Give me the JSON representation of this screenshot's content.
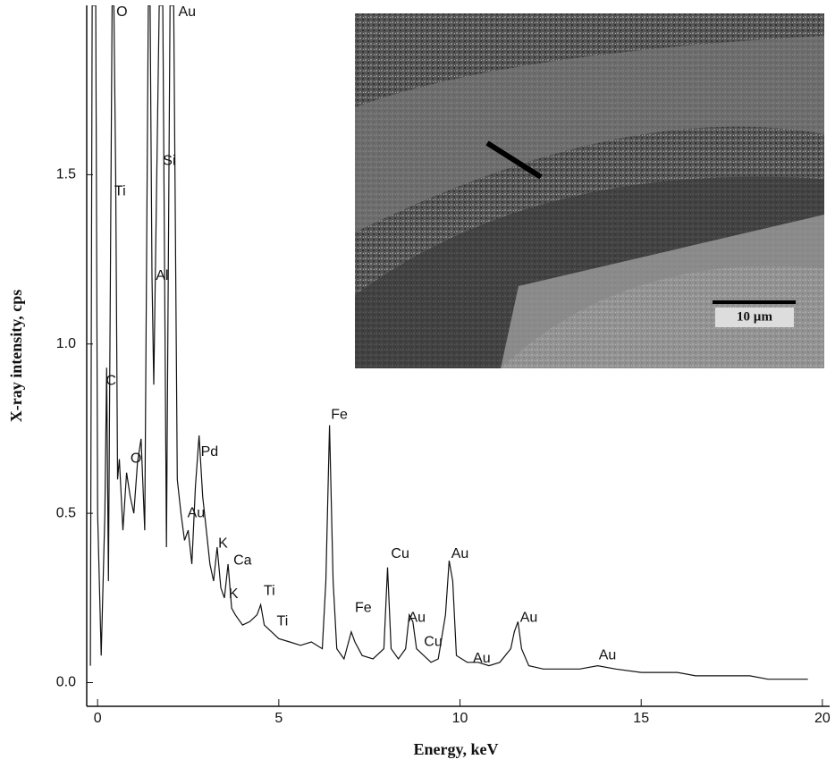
{
  "chart_data": {
    "type": "line",
    "ylabel": "X-ray intensity, cps",
    "xlabel": "Energy, keV",
    "xlim": [
      -0.3,
      20.2
    ],
    "ylim": [
      -0.07,
      2.0
    ],
    "xticks": [
      0,
      5,
      10,
      15,
      20
    ],
    "yticks": [
      {
        "value": 0,
        "label": "0.0"
      },
      0.5,
      {
        "value": 1,
        "label": "1.0"
      },
      1.5
    ],
    "x": [
      -0.2,
      -0.15,
      -0.05,
      0.0,
      0.1,
      0.2,
      0.25,
      0.3,
      0.4,
      0.45,
      0.5,
      0.55,
      0.6,
      0.7,
      0.8,
      0.9,
      1.0,
      1.1,
      1.2,
      1.3,
      1.4,
      1.45,
      1.5,
      1.55,
      1.6,
      1.7,
      1.8,
      1.9,
      2.0,
      2.1,
      2.2,
      2.3,
      2.4,
      2.5,
      2.6,
      2.7,
      2.8,
      2.9,
      3.0,
      3.1,
      3.2,
      3.3,
      3.4,
      3.5,
      3.6,
      3.7,
      3.8,
      4.0,
      4.2,
      4.4,
      4.5,
      4.6,
      4.8,
      5.0,
      5.3,
      5.6,
      5.9,
      6.2,
      6.3,
      6.4,
      6.5,
      6.6,
      6.8,
      7.0,
      7.1,
      7.3,
      7.6,
      7.9,
      8.0,
      8.1,
      8.3,
      8.5,
      8.6,
      8.7,
      8.8,
      9.0,
      9.2,
      9.4,
      9.6,
      9.7,
      9.8,
      9.9,
      10.2,
      10.5,
      10.8,
      11.1,
      11.4,
      11.5,
      11.6,
      11.7,
      11.9,
      12.3,
      12.8,
      13.3,
      13.8,
      14.3,
      15.0,
      15.5,
      16.0,
      16.5,
      17.0,
      17.5,
      18.0,
      18.5,
      19.0,
      19.6
    ],
    "series": [
      {
        "color": "#111111",
        "values": [
          0.05,
          2.0,
          2.0,
          0.5,
          0.08,
          0.5,
          0.93,
          0.3,
          2.0,
          2.0,
          1.5,
          0.6,
          0.66,
          0.45,
          0.62,
          0.55,
          0.5,
          0.65,
          0.72,
          0.45,
          2.0,
          2.0,
          1.2,
          0.88,
          1.25,
          2.0,
          2.0,
          0.4,
          2.0,
          2.0,
          0.6,
          0.5,
          0.42,
          0.45,
          0.35,
          0.58,
          0.73,
          0.55,
          0.45,
          0.35,
          0.3,
          0.4,
          0.28,
          0.25,
          0.35,
          0.22,
          0.2,
          0.17,
          0.18,
          0.2,
          0.23,
          0.17,
          0.15,
          0.13,
          0.12,
          0.11,
          0.12,
          0.1,
          0.3,
          0.76,
          0.3,
          0.1,
          0.07,
          0.15,
          0.12,
          0.08,
          0.07,
          0.1,
          0.34,
          0.1,
          0.07,
          0.1,
          0.2,
          0.18,
          0.1,
          0.08,
          0.06,
          0.07,
          0.2,
          0.36,
          0.3,
          0.08,
          0.06,
          0.06,
          0.05,
          0.06,
          0.1,
          0.15,
          0.18,
          0.1,
          0.05,
          0.04,
          0.04,
          0.04,
          0.05,
          0.04,
          0.03,
          0.03,
          0.03,
          0.02,
          0.02,
          0.02,
          0.02,
          0.01,
          0.01,
          0.01
        ]
      }
    ],
    "annotations": [
      {
        "text": "O",
        "x": 0.67,
        "y": 1.98
      },
      {
        "text": "Au",
        "x": 2.47,
        "y": 1.98
      },
      {
        "text": "Si",
        "x": 1.98,
        "y": 1.54
      },
      {
        "text": "Ti",
        "x": 0.62,
        "y": 1.45
      },
      {
        "text": "Al",
        "x": 1.78,
        "y": 1.2
      },
      {
        "text": "C",
        "x": 0.37,
        "y": 0.89
      },
      {
        "text": "O",
        "x": 1.06,
        "y": 0.66
      },
      {
        "text": "Pd",
        "x": 3.09,
        "y": 0.68
      },
      {
        "text": "Au",
        "x": 2.72,
        "y": 0.5
      },
      {
        "text": "K",
        "x": 3.46,
        "y": 0.41
      },
      {
        "text": "Ca",
        "x": 4.0,
        "y": 0.36
      },
      {
        "text": "K",
        "x": 3.75,
        "y": 0.26
      },
      {
        "text": "Ti",
        "x": 4.74,
        "y": 0.27
      },
      {
        "text": "Ti",
        "x": 5.1,
        "y": 0.18
      },
      {
        "text": "Fe",
        "x": 6.67,
        "y": 0.79
      },
      {
        "text": "Fe",
        "x": 7.33,
        "y": 0.22
      },
      {
        "text": "Cu",
        "x": 8.35,
        "y": 0.38
      },
      {
        "text": "Au",
        "x": 10.0,
        "y": 0.38
      },
      {
        "text": "Au",
        "x": 8.81,
        "y": 0.19
      },
      {
        "text": "Cu",
        "x": 9.26,
        "y": 0.12
      },
      {
        "text": "Au",
        "x": 10.6,
        "y": 0.07
      },
      {
        "text": "Au",
        "x": 11.9,
        "y": 0.19
      },
      {
        "text": "Au",
        "x": 14.07,
        "y": 0.08
      }
    ],
    "inset": {
      "scale_bar": "10 µm"
    }
  }
}
